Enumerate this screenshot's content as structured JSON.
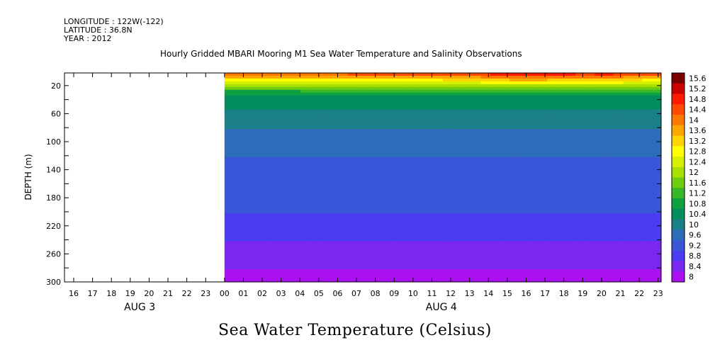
{
  "header": {
    "longitude": "LONGITUDE : 122W(-122)",
    "latitude": "LATITUDE : 36.8N",
    "year": "YEAR : 2012"
  },
  "chart_data": {
    "type": "heatmap",
    "title": "Hourly Gridded MBARI Mooring M1 Sea Water Temperature and Salinity Observations",
    "subtitle": "Sea Water Temperature (Celsius)",
    "ylabel": "DEPTH (m)",
    "ylim": [
      300,
      2
    ],
    "y_ticks": [
      20,
      60,
      100,
      140,
      180,
      220,
      260,
      300
    ],
    "x_ticks": [
      "16",
      "17",
      "18",
      "19",
      "20",
      "21",
      "22",
      "23",
      "00",
      "01",
      "02",
      "03",
      "04",
      "05",
      "06",
      "07",
      "08",
      "09",
      "10",
      "11",
      "12",
      "13",
      "14",
      "15",
      "16",
      "17",
      "18",
      "19",
      "20",
      "21",
      "22",
      "23"
    ],
    "date_labels": [
      {
        "label": "AUG  3",
        "hour_index": 3.5
      },
      {
        "label": "AUG  4",
        "hour_index": 19.5
      }
    ],
    "data_start_hour_index": 8,
    "depths": [
      2,
      10,
      20,
      30,
      40,
      60,
      80,
      100,
      120,
      140,
      160,
      180,
      200,
      220,
      240,
      260,
      280,
      300
    ],
    "profile_C": [
      15.0,
      13.6,
      12.2,
      11.0,
      10.6,
      10.3,
      10.0,
      9.8,
      9.6,
      9.5,
      9.4,
      9.3,
      9.2,
      9.0,
      8.8,
      8.6,
      8.4,
      8.2
    ],
    "surface_C_by_hour": [
      14.6,
      14.6,
      14.6,
      14.6,
      14.7,
      14.7,
      14.7,
      14.8,
      14.8,
      14.8,
      14.8,
      14.8,
      14.9,
      15.0,
      15.2,
      15.5,
      15.5,
      15.4,
      15.2,
      15.1,
      15.3,
      15.0,
      14.8,
      14.8
    ],
    "colorbar": {
      "levels": [
        "15.6",
        "15.2",
        "14.8",
        "14.4",
        "14",
        "13.6",
        "13.2",
        "12.8",
        "12.4",
        "12",
        "11.6",
        "11.2",
        "10.8",
        "10.4",
        "10",
        "9.6",
        "9.2",
        "8.8",
        "8.4",
        "8"
      ],
      "colors": [
        "#7a0000",
        "#c80000",
        "#ff1a00",
        "#ff4a00",
        "#ff7800",
        "#ffa600",
        "#ffd400",
        "#ffff00",
        "#d8f000",
        "#a8e000",
        "#70cc10",
        "#36b828",
        "#0fa040",
        "#008f5c",
        "#1b7f8a",
        "#2d6cb8",
        "#3a56d8",
        "#4a3cf0",
        "#7a28f0",
        "#aa10f0"
      ]
    }
  }
}
